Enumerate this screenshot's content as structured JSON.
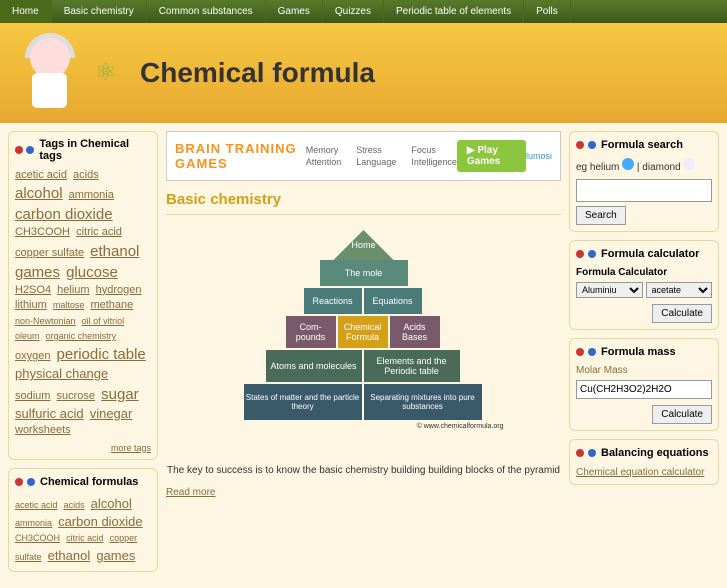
{
  "nav": {
    "items": [
      "Home",
      "Basic chemistry",
      "Common substances",
      "Games",
      "Quizzes",
      "Periodic table of elements",
      "Polls"
    ]
  },
  "header": {
    "title": "Chemical formula"
  },
  "ad": {
    "title": "BRAIN TRAINING GAMES",
    "cats": [
      [
        "Memory",
        "Attention"
      ],
      [
        "Stress",
        "Language"
      ],
      [
        "Focus",
        "Intelligence"
      ]
    ],
    "play": "▶ Play Games",
    "brand": "lumosi"
  },
  "page": {
    "title": "Basic chemistry",
    "caption": "The key to success is to know the basic chemistry building building blocks of the pyramid",
    "readmore": "Read more"
  },
  "pyramid": {
    "credit": "© www.chemicalformula.org",
    "rows": [
      [
        "Home"
      ],
      [
        "The mole"
      ],
      [
        "Reactions",
        "Equations"
      ],
      [
        "Com-pounds",
        "Chemical Formula",
        "Acids Bases"
      ],
      [
        "Atoms and molecules",
        "Elements and the Periodic table"
      ],
      [
        "States of matter and the particle theory",
        "Separating mixtures into pure substances"
      ]
    ]
  },
  "tags_widget": {
    "title": "Tags in Chemical tags",
    "more": "more tags",
    "tags": [
      {
        "t": "acetic acid",
        "s": "m"
      },
      {
        "t": "acids",
        "s": "m"
      },
      {
        "t": "alcohol",
        "s": "xl"
      },
      {
        "t": "ammonia",
        "s": "m"
      },
      {
        "t": "carbon dioxide",
        "s": "xl"
      },
      {
        "t": "CH3COOH",
        "s": "m"
      },
      {
        "t": "citric acid",
        "s": "m"
      },
      {
        "t": "copper sulfate",
        "s": "m"
      },
      {
        "t": "ethanol",
        "s": "xl"
      },
      {
        "t": "games",
        "s": "xl"
      },
      {
        "t": "glucose",
        "s": "xl"
      },
      {
        "t": "H2SO4",
        "s": "m"
      },
      {
        "t": "helium",
        "s": "m"
      },
      {
        "t": "hydrogen",
        "s": "m"
      },
      {
        "t": "lithium",
        "s": "m"
      },
      {
        "t": "maltose",
        "s": "s"
      },
      {
        "t": "methane",
        "s": "m"
      },
      {
        "t": "non-Newtonian",
        "s": "s"
      },
      {
        "t": "oil of vitriol",
        "s": "s"
      },
      {
        "t": "oleum",
        "s": "s"
      },
      {
        "t": "organic chemistry",
        "s": "s"
      },
      {
        "t": "oxygen",
        "s": "m"
      },
      {
        "t": "periodic table",
        "s": "xl"
      },
      {
        "t": "physical change",
        "s": "l"
      },
      {
        "t": "sodium",
        "s": "m"
      },
      {
        "t": "sucrose",
        "s": "m"
      },
      {
        "t": "sugar",
        "s": "xl"
      },
      {
        "t": "sulfuric acid",
        "s": "l"
      },
      {
        "t": "vinegar",
        "s": "l"
      },
      {
        "t": "worksheets",
        "s": "m"
      }
    ]
  },
  "formulas_widget": {
    "title": "Chemical formulas",
    "tags": [
      {
        "t": "acetic acid",
        "s": "s"
      },
      {
        "t": "acids",
        "s": "s"
      },
      {
        "t": "alcohol",
        "s": "l"
      },
      {
        "t": "ammonia",
        "s": "s"
      },
      {
        "t": "carbon dioxide",
        "s": "l"
      },
      {
        "t": "CH3COOH",
        "s": "s"
      },
      {
        "t": "citric acid",
        "s": "s"
      },
      {
        "t": "copper sulfate",
        "s": "s"
      },
      {
        "t": "ethanol",
        "s": "l"
      },
      {
        "t": "games",
        "s": "l"
      }
    ]
  },
  "search": {
    "title": "Formula search",
    "hint_pre": "eg helium",
    "hint_mid": "| diamond",
    "button": "Search"
  },
  "calculator": {
    "title": "Formula calculator",
    "label": "Formula Calculator",
    "opt1": "Aluminiu",
    "opt2": "acetate",
    "button": "Calculate"
  },
  "mass": {
    "title": "Formula mass",
    "label": "Molar Mass",
    "value": "Cu(CH2H3O2)2H2O",
    "button": "Calculate"
  },
  "balance": {
    "title": "Balancing equations",
    "link": "Chemical equation calculator"
  }
}
